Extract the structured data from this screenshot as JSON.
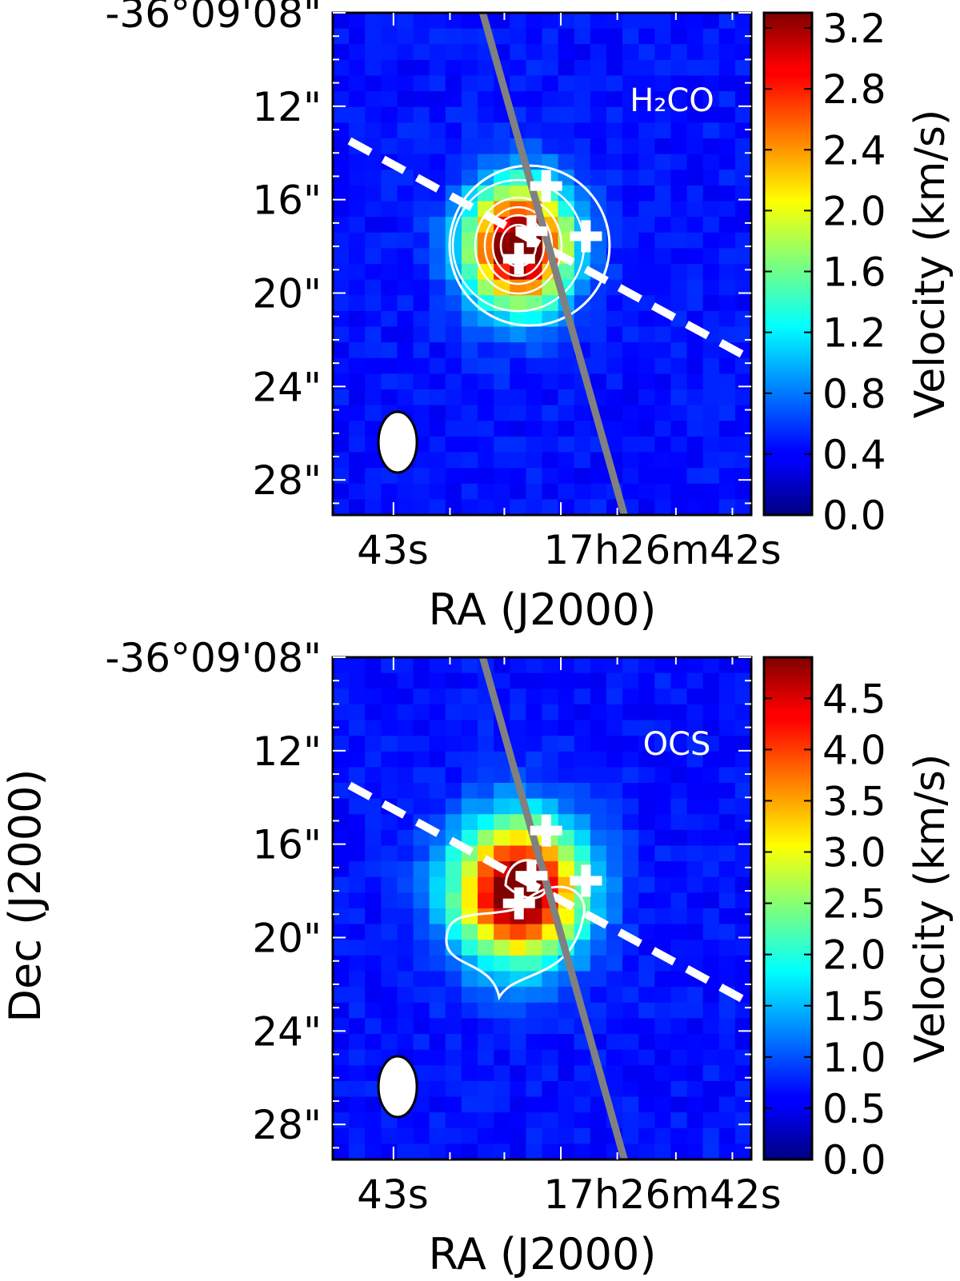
{
  "figure": {
    "shared_ylabel": "Dec (J2000)"
  },
  "colors": {
    "background": "#0b22c8",
    "contour": "#ffffff",
    "pv_cut_line": "#808080",
    "outflow_axis": "#ffffff",
    "marker": "#ffffff",
    "beam": "#ffffff",
    "frame": "#000000"
  },
  "chart_data": [
    {
      "type": "heatmap",
      "panel": "top",
      "label": "H₂CO",
      "xlabel": "RA (J2000)",
      "x_ticks": [
        "43s",
        "17h26m42s"
      ],
      "y_ticks": [
        "-36°09'08\"",
        "12\"",
        "16\"",
        "20\"",
        "24\"",
        "28\""
      ],
      "dec_range_arcsec": [
        8,
        29.5
      ],
      "colorbar": {
        "label": "Velocity (km/s)",
        "colormap": "jet",
        "range": [
          0.0,
          3.3
        ],
        "ticks": [
          "0.0",
          "0.4",
          "0.8",
          "1.2",
          "1.6",
          "2.0",
          "2.4",
          "2.8",
          "3.2"
        ]
      },
      "peak_value": 3.2,
      "contour_levels": 5,
      "markers": 4,
      "beam": "ellipse",
      "lines": [
        "solid PV cut",
        "dashed outflow axis"
      ]
    },
    {
      "type": "heatmap",
      "panel": "bottom",
      "label": "OCS",
      "xlabel": "RA (J2000)",
      "x_ticks": [
        "43s",
        "17h26m42s"
      ],
      "y_ticks": [
        "-36°09'08\"",
        "12\"",
        "16\"",
        "20\"",
        "24\"",
        "28\""
      ],
      "dec_range_arcsec": [
        8,
        29.5
      ],
      "colorbar": {
        "label": "Velocity (km/s)",
        "colormap": "jet",
        "range": [
          0.0,
          4.9
        ],
        "ticks": [
          "0.0",
          "0.5",
          "1.0",
          "1.5",
          "2.0",
          "2.5",
          "3.0",
          "3.5",
          "4.0",
          "4.5"
        ]
      },
      "peak_value": 4.7,
      "contour_levels": 2,
      "markers": 4,
      "beam": "ellipse",
      "lines": [
        "solid PV cut",
        "dashed outflow axis"
      ]
    }
  ]
}
